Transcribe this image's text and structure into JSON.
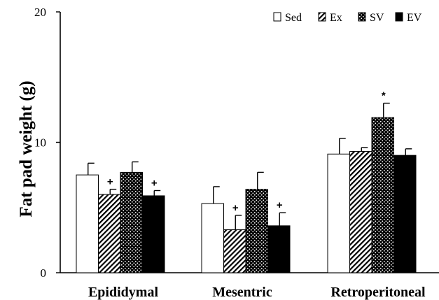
{
  "chart_data": {
    "type": "bar",
    "title": "",
    "xlabel": "",
    "ylabel": "Fat pad weight (g)",
    "ylim": [
      0,
      20
    ],
    "yticks": [
      "0",
      "10",
      "20"
    ],
    "grid": false,
    "legend_position": "top-right",
    "categories": [
      "Epididymal",
      "Mesentric",
      "Retroperitoneal"
    ],
    "series": [
      {
        "name": "Sed",
        "pattern": "open",
        "values": [
          7.5,
          5.3,
          9.1
        ],
        "errors": [
          0.9,
          1.3,
          1.2
        ],
        "annotations": [
          "",
          "",
          ""
        ]
      },
      {
        "name": "Ex",
        "pattern": "hatched",
        "values": [
          6.0,
          3.3,
          9.3
        ],
        "errors": [
          0.4,
          1.1,
          0.3
        ],
        "annotations": [
          "+",
          "+",
          ""
        ]
      },
      {
        "name": "SV",
        "pattern": "dotted",
        "values": [
          7.7,
          6.4,
          11.9
        ],
        "errors": [
          0.8,
          1.3,
          1.1
        ],
        "annotations": [
          "",
          "",
          "*"
        ]
      },
      {
        "name": "EV",
        "pattern": "solid",
        "values": [
          5.9,
          3.6,
          9.0
        ],
        "errors": [
          0.4,
          1.0,
          0.5
        ],
        "annotations": [
          "+",
          "+",
          ""
        ]
      }
    ]
  }
}
